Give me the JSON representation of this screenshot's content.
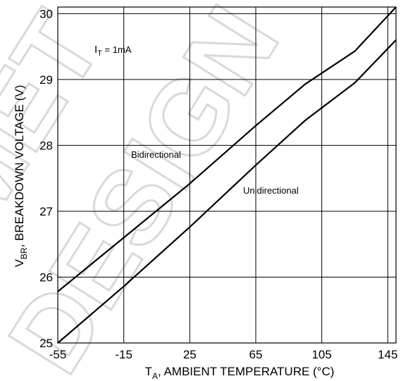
{
  "chart_data": {
    "type": "line",
    "xlabel_main": "T",
    "xlabel_sub": "A",
    "xlabel_rest": ", AMBIENT TEMPERATURE (°C)",
    "ylabel_main": "V",
    "ylabel_sub": "BR",
    "ylabel_rest": ", BREAKDOWN VOLTAGE (V)",
    "xlim": [
      -55,
      150
    ],
    "ylim": [
      25,
      30.1
    ],
    "x_ticks": [
      -55,
      -15,
      25,
      65,
      105,
      145
    ],
    "y_ticks": [
      25,
      26,
      27,
      28,
      29,
      30
    ],
    "grid": true,
    "annotations": {
      "condition_main": "I",
      "condition_sub": "T",
      "condition_rest": " = 1mA"
    },
    "series": [
      {
        "name": "Bidirectional",
        "points": [
          [
            -55,
            25.78
          ],
          [
            -15,
            26.6
          ],
          [
            25,
            27.42
          ],
          [
            65,
            28.3
          ],
          [
            95,
            28.93
          ],
          [
            125,
            29.43
          ],
          [
            150,
            30.1
          ]
        ]
      },
      {
        "name": "Unidirectional",
        "points": [
          [
            -55,
            25.0
          ],
          [
            -15,
            25.86
          ],
          [
            25,
            26.76
          ],
          [
            65,
            27.7
          ],
          [
            95,
            28.38
          ],
          [
            125,
            28.95
          ],
          [
            150,
            29.6
          ]
        ]
      }
    ]
  },
  "watermark": {
    "line1": "MET",
    "line2": "DESIGN"
  }
}
